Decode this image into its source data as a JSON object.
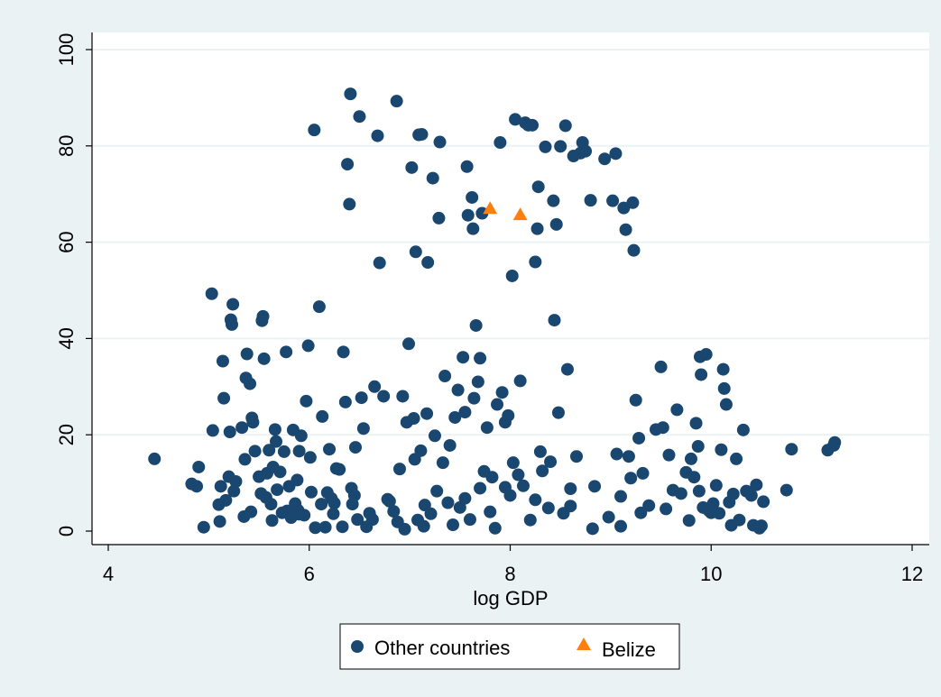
{
  "chart_data": {
    "type": "scatter",
    "title": "",
    "xlabel": "log GDP",
    "ylabel": "",
    "xlim": [
      4,
      12
    ],
    "ylim": [
      0,
      100
    ],
    "xticks": [
      4,
      6,
      8,
      10,
      12
    ],
    "yticks": [
      0,
      20,
      40,
      60,
      80,
      100
    ],
    "grid": "horizontal",
    "legend_position": "bottom",
    "colors": {
      "background": "#eaf2f3",
      "plot_bg": "#ffffff",
      "other": "#1a476f",
      "belize": "#ff7f0e",
      "grid": "#eaf2f3"
    },
    "series": [
      {
        "name": "Other countries",
        "marker": "circle",
        "points": [
          [
            4.46,
            15
          ],
          [
            4.83,
            9.8
          ],
          [
            4.88,
            9.3
          ],
          [
            4.9,
            13.3
          ],
          [
            4.95,
            0.8
          ],
          [
            5.03,
            49.3
          ],
          [
            5.04,
            20.9
          ],
          [
            5.1,
            5.5
          ],
          [
            5.11,
            2
          ],
          [
            5.12,
            9.3
          ],
          [
            5.14,
            35.3
          ],
          [
            5.15,
            27.6
          ],
          [
            5.17,
            6.4
          ],
          [
            5.2,
            11.3
          ],
          [
            5.21,
            20.6
          ],
          [
            5.22,
            43.9
          ],
          [
            5.23,
            42.9
          ],
          [
            5.24,
            47.1
          ],
          [
            5.25,
            8.3
          ],
          [
            5.27,
            10.3
          ],
          [
            5.33,
            21.5
          ],
          [
            5.35,
            3
          ],
          [
            5.36,
            14.9
          ],
          [
            5.37,
            31.8
          ],
          [
            5.38,
            36.8
          ],
          [
            5.41,
            30.6
          ],
          [
            5.42,
            4
          ],
          [
            5.43,
            23.5
          ],
          [
            5.44,
            22.6
          ],
          [
            5.46,
            16.6
          ],
          [
            5.5,
            11.3
          ],
          [
            5.52,
            7.8
          ],
          [
            5.53,
            43.7
          ],
          [
            5.54,
            44.6
          ],
          [
            5.55,
            35.8
          ],
          [
            5.57,
            7
          ],
          [
            5.58,
            12
          ],
          [
            5.6,
            16.8
          ],
          [
            5.62,
            5.6
          ],
          [
            5.63,
            2.2
          ],
          [
            5.64,
            13.3
          ],
          [
            5.66,
            21.1
          ],
          [
            5.67,
            18.6
          ],
          [
            5.68,
            8.6
          ],
          [
            5.71,
            12.3
          ],
          [
            5.73,
            3.8
          ],
          [
            5.75,
            16.5
          ],
          [
            5.77,
            37.2
          ],
          [
            5.78,
            4.2
          ],
          [
            5.8,
            9.3
          ],
          [
            5.82,
            2.8
          ],
          [
            5.84,
            21
          ],
          [
            5.86,
            5.7
          ],
          [
            5.88,
            10.6
          ],
          [
            5.89,
            4.3
          ],
          [
            5.9,
            16.6
          ],
          [
            5.92,
            19.8
          ],
          [
            5.95,
            3.3
          ],
          [
            5.97,
            27
          ],
          [
            5.99,
            38.5
          ],
          [
            6.01,
            15.3
          ],
          [
            6.05,
            83.3
          ],
          [
            6.06,
            0.7
          ],
          [
            6.1,
            46.6
          ],
          [
            6.12,
            5.6
          ],
          [
            6.13,
            23.8
          ],
          [
            6.16,
            0.8
          ],
          [
            6.18,
            8
          ],
          [
            6.2,
            17
          ],
          [
            6.22,
            6.8
          ],
          [
            6.24,
            3.6
          ],
          [
            6.27,
            13
          ],
          [
            6.3,
            12.8
          ],
          [
            6.33,
            0.9
          ],
          [
            6.34,
            37.2
          ],
          [
            6.36,
            26.8
          ],
          [
            6.38,
            76.2
          ],
          [
            6.4,
            67.9
          ],
          [
            6.41,
            90.8
          ],
          [
            6.42,
            8.9
          ],
          [
            6.43,
            5.6
          ],
          [
            6.46,
            17.4
          ],
          [
            6.48,
            2.4
          ],
          [
            6.5,
            86.1
          ],
          [
            6.52,
            27.7
          ],
          [
            6.54,
            21.3
          ],
          [
            6.57,
            0.9
          ],
          [
            6.6,
            3.7
          ],
          [
            6.63,
            2.4
          ],
          [
            6.65,
            30
          ],
          [
            6.68,
            82.1
          ],
          [
            6.7,
            55.7
          ],
          [
            6.74,
            28
          ],
          [
            6.78,
            6.6
          ],
          [
            6.84,
            4.1
          ],
          [
            6.87,
            89.3
          ],
          [
            6.88,
            1.9
          ],
          [
            6.9,
            12.9
          ],
          [
            6.93,
            28
          ],
          [
            6.95,
            0.4
          ],
          [
            6.97,
            22.6
          ],
          [
            6.99,
            38.9
          ],
          [
            7.02,
            75.5
          ],
          [
            7.04,
            23.4
          ],
          [
            7.05,
            14.9
          ],
          [
            7.06,
            58
          ],
          [
            7.08,
            2.3
          ],
          [
            7.09,
            82.3
          ],
          [
            7.11,
            16.7
          ],
          [
            7.12,
            82.4
          ],
          [
            7.14,
            1
          ],
          [
            7.17,
            24.4
          ],
          [
            7.18,
            55.8
          ],
          [
            7.21,
            3.6
          ],
          [
            7.23,
            73.3
          ],
          [
            7.25,
            19.8
          ],
          [
            7.27,
            8.3
          ],
          [
            7.29,
            65
          ],
          [
            7.3,
            80.8
          ],
          [
            7.33,
            14.2
          ],
          [
            7.35,
            32.2
          ],
          [
            7.38,
            5.9
          ],
          [
            7.4,
            17.8
          ],
          [
            7.43,
            1.3
          ],
          [
            7.45,
            23.6
          ],
          [
            7.48,
            29.3
          ],
          [
            7.5,
            4.9
          ],
          [
            7.53,
            36.1
          ],
          [
            7.55,
            24.7
          ],
          [
            7.57,
            75.7
          ],
          [
            7.58,
            65.6
          ],
          [
            7.6,
            2.4
          ],
          [
            7.62,
            69.3
          ],
          [
            7.63,
            62.8
          ],
          [
            7.64,
            27.6
          ],
          [
            7.66,
            42.7
          ],
          [
            7.68,
            31
          ],
          [
            7.7,
            35.9
          ],
          [
            7.72,
            66
          ],
          [
            7.74,
            12.4
          ],
          [
            7.77,
            21.5
          ],
          [
            7.8,
            4
          ],
          [
            7.82,
            11.2
          ],
          [
            7.85,
            0.6
          ],
          [
            7.87,
            26.3
          ],
          [
            7.9,
            80.7
          ],
          [
            7.92,
            28.8
          ],
          [
            7.95,
            22.6
          ],
          [
            7.98,
            24
          ],
          [
            8.0,
            7.4
          ],
          [
            8.02,
            53
          ],
          [
            8.03,
            14.2
          ],
          [
            8.05,
            85.5
          ],
          [
            8.08,
            11.7
          ],
          [
            8.1,
            31.2
          ],
          [
            8.13,
            9.4
          ],
          [
            8.15,
            84.8
          ],
          [
            8.18,
            84.3
          ],
          [
            8.2,
            2.3
          ],
          [
            8.22,
            84.3
          ],
          [
            8.25,
            55.9
          ],
          [
            8.27,
            62.8
          ],
          [
            8.28,
            71.5
          ],
          [
            8.3,
            16.5
          ],
          [
            8.32,
            12.5
          ],
          [
            8.35,
            79.8
          ],
          [
            8.38,
            4.8
          ],
          [
            8.4,
            14.4
          ],
          [
            8.43,
            68.6
          ],
          [
            8.44,
            43.8
          ],
          [
            8.46,
            63.7
          ],
          [
            8.48,
            24.6
          ],
          [
            8.5,
            79.9
          ],
          [
            8.53,
            3.7
          ],
          [
            8.55,
            84.2
          ],
          [
            8.57,
            33.6
          ],
          [
            8.6,
            8.8
          ],
          [
            8.63,
            77.9
          ],
          [
            8.66,
            15.5
          ],
          [
            8.7,
            78.5
          ],
          [
            8.72,
            80.7
          ],
          [
            8.75,
            78.9
          ],
          [
            8.8,
            68.7
          ],
          [
            8.82,
            0.5
          ],
          [
            8.84,
            9.3
          ],
          [
            8.94,
            77.3
          ],
          [
            8.98,
            2.9
          ],
          [
            9.02,
            68.6
          ],
          [
            9.05,
            78.4
          ],
          [
            9.06,
            16
          ],
          [
            9.1,
            1
          ],
          [
            9.13,
            67.1
          ],
          [
            9.15,
            62.6
          ],
          [
            9.18,
            15.5
          ],
          [
            9.2,
            11
          ],
          [
            9.22,
            68.2
          ],
          [
            9.23,
            58.3
          ],
          [
            9.25,
            27.2
          ],
          [
            9.28,
            19.3
          ],
          [
            9.3,
            3.8
          ],
          [
            9.32,
            12
          ],
          [
            9.38,
            5.3
          ],
          [
            9.45,
            21.1
          ],
          [
            9.5,
            34.1
          ],
          [
            9.52,
            21.5
          ],
          [
            9.55,
            4.6
          ],
          [
            9.58,
            15.8
          ],
          [
            9.62,
            8.5
          ],
          [
            9.66,
            25.2
          ],
          [
            9.7,
            7.8
          ],
          [
            9.75,
            12.2
          ],
          [
            9.78,
            2.2
          ],
          [
            9.8,
            15
          ],
          [
            9.83,
            11.2
          ],
          [
            9.85,
            22.4
          ],
          [
            9.87,
            17.6
          ],
          [
            9.89,
            36.2
          ],
          [
            9.9,
            32.5
          ],
          [
            9.92,
            4.9
          ],
          [
            9.95,
            36.7
          ],
          [
            9.98,
            4.2
          ],
          [
            10.0,
            3.8
          ],
          [
            10.02,
            5.7
          ],
          [
            10.05,
            9.5
          ],
          [
            10.08,
            3.7
          ],
          [
            10.1,
            16.9
          ],
          [
            10.12,
            33.6
          ],
          [
            10.13,
            29.6
          ],
          [
            10.15,
            26.3
          ],
          [
            10.18,
            6
          ],
          [
            10.2,
            1.2
          ],
          [
            10.22,
            7.7
          ],
          [
            10.25,
            15
          ],
          [
            10.28,
            2.3
          ],
          [
            10.32,
            21
          ],
          [
            10.35,
            8.3
          ],
          [
            10.4,
            7.4
          ],
          [
            10.42,
            1.2
          ],
          [
            10.45,
            9.6
          ],
          [
            10.48,
            0.6
          ],
          [
            10.5,
            1.1
          ],
          [
            10.52,
            6.1
          ],
          [
            10.75,
            8.5
          ],
          [
            10.8,
            17
          ],
          [
            11.16,
            16.8
          ],
          [
            11.22,
            17.8
          ],
          [
            11.23,
            18.4
          ],
          [
            7.55,
            6.8
          ],
          [
            6.02,
            8.1
          ],
          [
            6.45,
            7.4
          ],
          [
            5.9,
            3.5
          ],
          [
            6.8,
            6.2
          ],
          [
            7.15,
            5.4
          ],
          [
            7.7,
            8.9
          ],
          [
            8.25,
            6.5
          ],
          [
            9.1,
            7.2
          ],
          [
            9.88,
            8.3
          ],
          [
            6.25,
            5.8
          ],
          [
            7.95,
            9.1
          ],
          [
            8.6,
            5.2
          ]
        ]
      },
      {
        "name": "Belize",
        "marker": "triangle",
        "points": [
          [
            7.8,
            67
          ],
          [
            8.1,
            65.7
          ]
        ]
      }
    ]
  },
  "legend": {
    "items": [
      {
        "label": "Other countries",
        "marker": "circle"
      },
      {
        "label": "Belize",
        "marker": "triangle"
      }
    ]
  }
}
